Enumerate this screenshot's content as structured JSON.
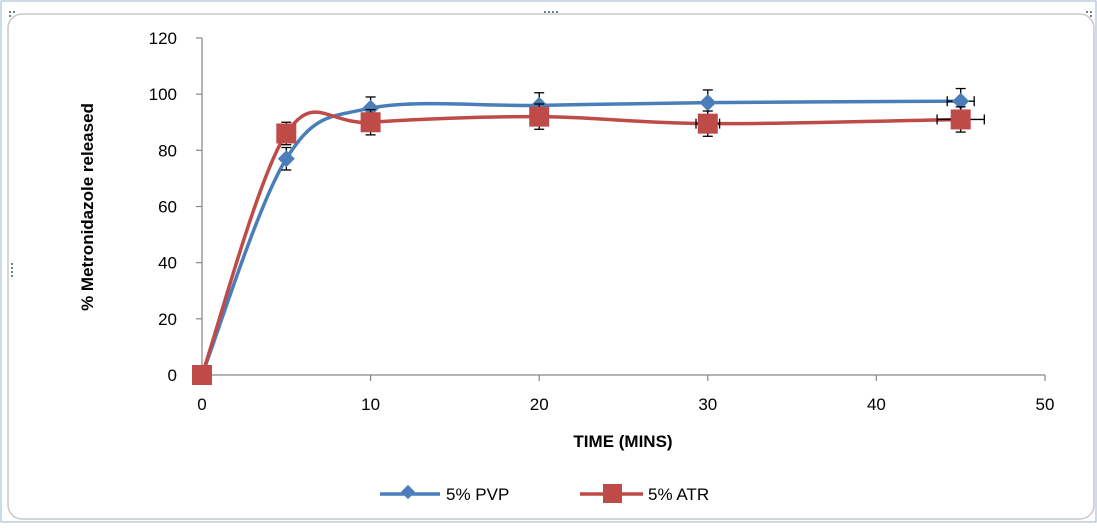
{
  "chart_data": {
    "type": "line",
    "title": "",
    "xlabel": "TIME (MINS)",
    "ylabel": "% Metronidazole released",
    "xlim": [
      0,
      50
    ],
    "ylim": [
      0,
      120
    ],
    "xticks": [
      "0",
      "10",
      "20",
      "30",
      "40",
      "50"
    ],
    "yticks": [
      "0",
      "20",
      "40",
      "60",
      "80",
      "100",
      "120"
    ],
    "grid": false,
    "legend_position": "bottom",
    "smoothed": true,
    "series": [
      {
        "name": "5% PVP",
        "color": "#4a7ebb",
        "marker": "diamond",
        "x": [
          0,
          5,
          10,
          20,
          30,
          45
        ],
        "y": [
          0,
          77,
          95,
          96,
          97,
          97.5
        ],
        "yerr": [
          0,
          4,
          4,
          4.5,
          4.5,
          4.5
        ],
        "xerr": [
          0,
          0,
          0,
          0,
          0,
          0.8
        ]
      },
      {
        "name": "5% ATR",
        "color": "#be4b48",
        "marker": "square",
        "x": [
          0,
          5,
          10,
          20,
          30,
          45
        ],
        "y": [
          0,
          86,
          90,
          92,
          89.5,
          91
        ],
        "yerr": [
          0,
          4,
          4.5,
          4.5,
          4.5,
          4.5
        ],
        "xerr": [
          0,
          0,
          0,
          0,
          0.7,
          1.4
        ]
      }
    ]
  }
}
